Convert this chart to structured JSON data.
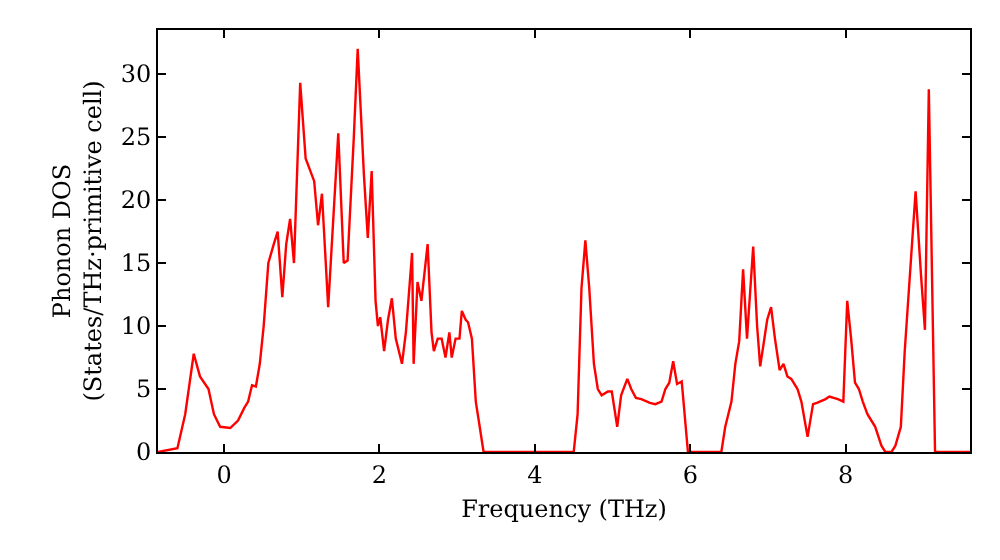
{
  "chart_data": {
    "type": "line",
    "xlabel": "Frequency (THz)",
    "ylabel": "Phonon DOS\n(States/THz·primitive cell)",
    "xlim": [
      -0.85,
      9.6
    ],
    "ylim": [
      0,
      33.5
    ],
    "xticks": [
      0,
      2,
      4,
      6,
      8
    ],
    "yticks": [
      0,
      5,
      10,
      15,
      20,
      25,
      30
    ],
    "marker": "none",
    "line_style": "solid",
    "series": [
      {
        "color": "#ff0000",
        "x": [
          -0.85,
          -0.6,
          -0.5,
          -0.39,
          -0.31,
          -0.2,
          -0.13,
          -0.05,
          0.08,
          0.18,
          0.26,
          0.31,
          0.36,
          0.41,
          0.46,
          0.51,
          0.57,
          0.64,
          0.69,
          0.75,
          0.8,
          0.85,
          0.9,
          0.98,
          1.05,
          1.16,
          1.21,
          1.26,
          1.34,
          1.42,
          1.47,
          1.54,
          1.59,
          1.67,
          1.72,
          1.8,
          1.85,
          1.9,
          1.95,
          1.98,
          2.01,
          2.06,
          2.11,
          2.16,
          2.21,
          2.29,
          2.34,
          2.42,
          2.44,
          2.49,
          2.54,
          2.62,
          2.67,
          2.7,
          2.75,
          2.8,
          2.85,
          2.9,
          2.93,
          2.98,
          3.03,
          3.06,
          3.11,
          3.14,
          3.19,
          3.24,
          3.29,
          3.34,
          3.78,
          4.5,
          4.55,
          4.6,
          4.65,
          4.7,
          4.76,
          4.81,
          4.86,
          4.94,
          4.99,
          5.06,
          5.11,
          5.19,
          5.24,
          5.3,
          5.37,
          5.48,
          5.55,
          5.63,
          5.68,
          5.73,
          5.78,
          5.83,
          5.89,
          5.97,
          6.4,
          6.45,
          6.53,
          6.58,
          6.63,
          6.68,
          6.73,
          6.81,
          6.86,
          6.9,
          6.99,
          7.04,
          7.09,
          7.15,
          7.2,
          7.25,
          7.3,
          7.38,
          7.43,
          7.51,
          7.58,
          7.63,
          7.74,
          7.79,
          7.9,
          7.97,
          8.02,
          8.07,
          8.12,
          8.17,
          8.22,
          8.28,
          8.33,
          8.38,
          8.46,
          8.51,
          8.59,
          8.64,
          8.71,
          8.76,
          8.9,
          8.97,
          9.02,
          9.07,
          9.15,
          9.6
        ],
        "values": [
          0,
          0.3,
          3,
          7.8,
          6,
          5,
          3,
          2,
          1.9,
          2.5,
          3.5,
          4,
          5.3,
          5.2,
          7,
          10,
          15,
          16.5,
          17.5,
          12.3,
          16.5,
          18.5,
          15,
          29.3,
          23.3,
          21.5,
          18,
          20.5,
          11.5,
          20,
          25.3,
          15,
          15.2,
          25,
          32,
          22,
          17,
          22.3,
          12,
          10,
          10.7,
          8,
          10.5,
          12.2,
          9,
          7,
          9.5,
          15.8,
          7,
          13.5,
          12,
          16.5,
          9.5,
          8,
          9,
          9,
          7.5,
          9.5,
          7.5,
          9,
          9,
          11.2,
          10.5,
          10.3,
          9,
          4,
          2,
          0,
          0,
          0,
          3,
          13,
          16.8,
          13,
          7,
          5,
          4.5,
          4.8,
          4.8,
          2,
          4.5,
          5.8,
          5,
          4.3,
          4.2,
          3.9,
          3.8,
          4,
          5,
          5.5,
          7.2,
          5.4,
          5.6,
          0,
          0,
          2,
          4,
          7,
          8.8,
          14.5,
          9,
          16.3,
          10,
          6.8,
          10.5,
          11.5,
          9,
          6.5,
          7,
          6,
          5.8,
          5,
          4,
          1.2,
          3.8,
          3.9,
          4.2,
          4.4,
          4.2,
          4,
          12,
          9,
          5.5,
          5,
          4,
          3,
          2.5,
          2,
          0.5,
          0,
          0,
          0.5,
          2,
          8,
          20.7,
          14,
          9.7,
          28.8,
          0,
          0
        ]
      }
    ]
  }
}
